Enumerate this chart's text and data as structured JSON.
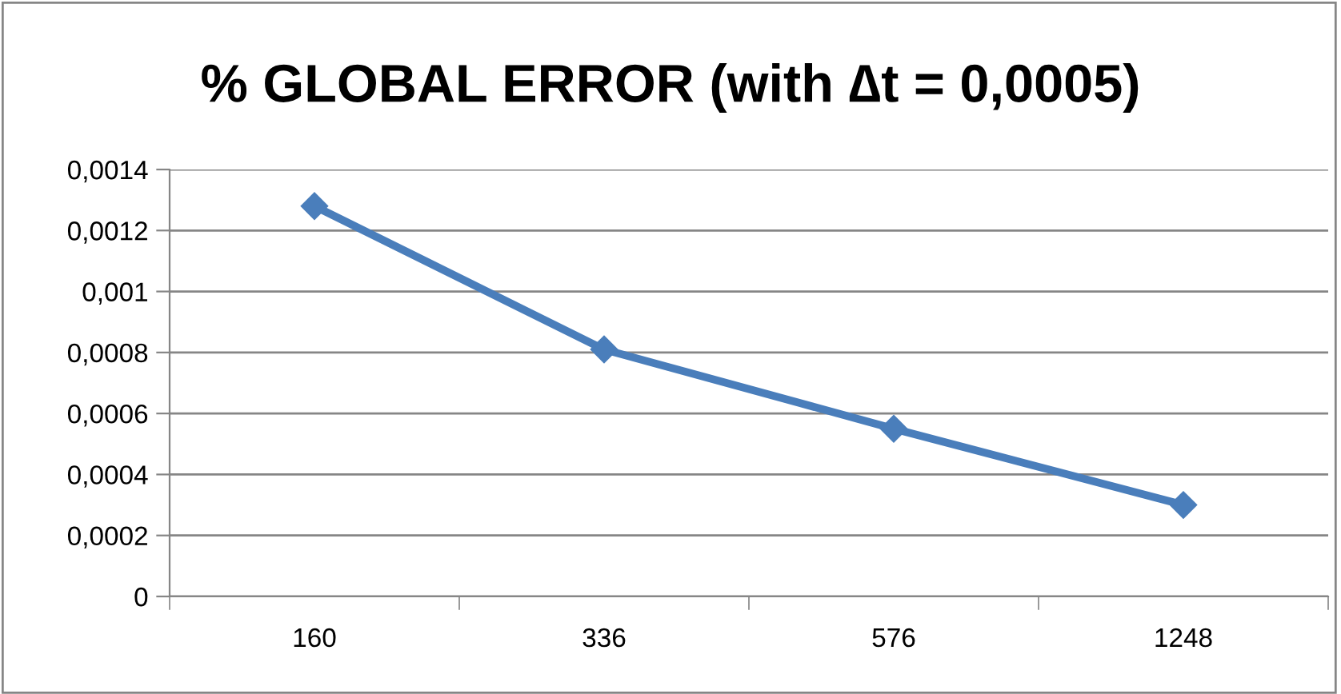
{
  "chart_data": {
    "type": "line",
    "title": "% GLOBAL ERROR (with ∆t = 0,0005)",
    "categories": [
      "160",
      "336",
      "576",
      "1248"
    ],
    "series": [
      {
        "color": "#4a7ebb",
        "values": [
          0.00128,
          0.00081,
          0.00055,
          0.0003
        ]
      }
    ],
    "ylim": [
      0,
      0.0014
    ],
    "yticks": [
      {
        "value": 0,
        "label": "0"
      },
      {
        "value": 0.0002,
        "label": "0,0002"
      },
      {
        "value": 0.0004,
        "label": "0,0004"
      },
      {
        "value": 0.0006,
        "label": "0,0006"
      },
      {
        "value": 0.0008,
        "label": "0,0008"
      },
      {
        "value": 0.001,
        "label": "0,001"
      },
      {
        "value": 0.0012,
        "label": "0,0012"
      },
      {
        "value": 0.0014,
        "label": "0,0014"
      }
    ],
    "grid": "y",
    "marker": "diamond",
    "line_style": "solid"
  }
}
